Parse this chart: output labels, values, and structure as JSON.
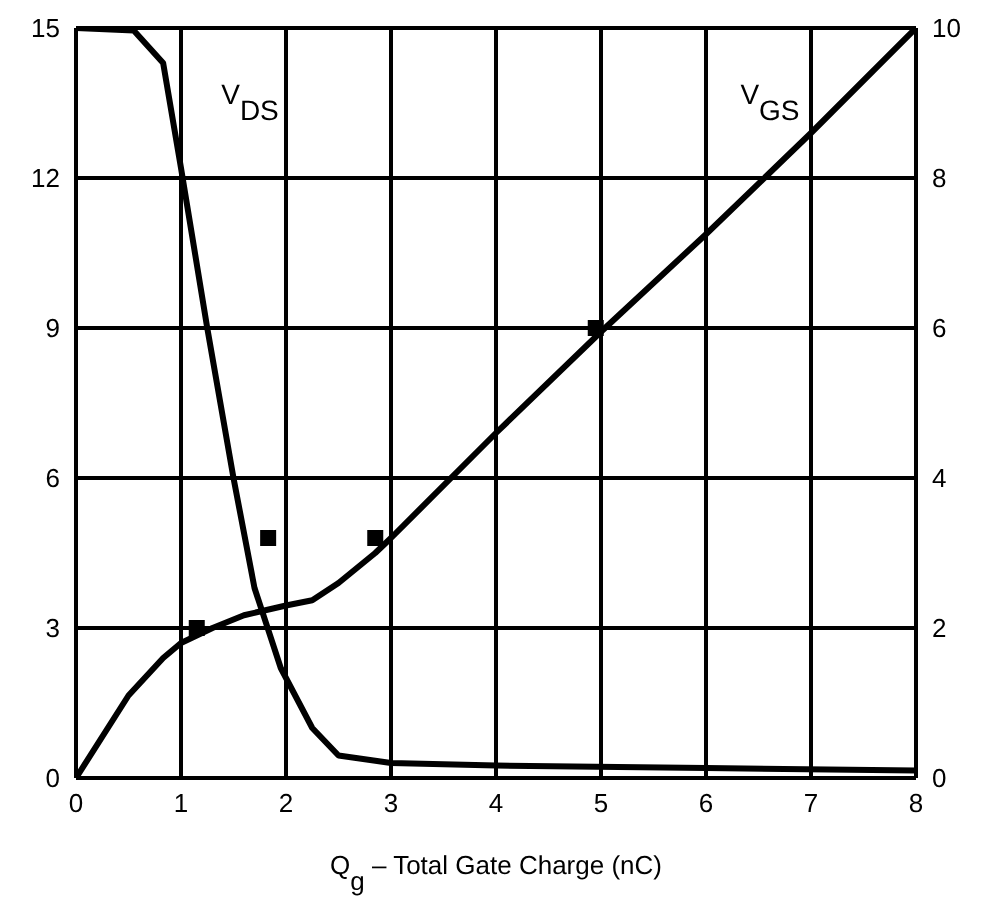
{
  "chart_data": {
    "type": "line",
    "xlabel": "Q$_{g}$ – Total Gate Charge (nC)",
    "xlim": [
      0,
      8
    ],
    "xticks": [
      0,
      1,
      2,
      3,
      4,
      5,
      6,
      7,
      8
    ],
    "ylim": [
      0,
      15
    ],
    "yticks": [
      0,
      3,
      6,
      9,
      12,
      15
    ],
    "y2lim": [
      0,
      10
    ],
    "y2ticks": [
      0,
      2,
      4,
      6,
      8,
      10
    ],
    "grid": true,
    "series": [
      {
        "axis": "y",
        "color": "#000000",
        "x": [
          0,
          0.55,
          0.83,
          1,
          1.25,
          1.5,
          1.7,
          1.95,
          2.25,
          2.5,
          3,
          4,
          6,
          8
        ],
        "values": [
          15,
          14.95,
          14.3,
          12.2,
          9,
          6,
          3.8,
          2.2,
          1.0,
          0.45,
          0.3,
          0.25,
          0.2,
          0.15
        ]
      },
      {
        "axis": "y2",
        "color": "#000000",
        "x": [
          0,
          0.5,
          0.83,
          1,
          1.3,
          1.6,
          2,
          2.25,
          2.5,
          2.85,
          3,
          4,
          5,
          6,
          7,
          8
        ],
        "values": [
          0,
          1.1,
          1.6,
          1.8,
          2.0,
          2.17,
          2.3,
          2.37,
          2.6,
          3.0,
          3.2,
          4.6,
          5.95,
          7.25,
          8.6,
          10
        ]
      },
      {
        "type": "scatter",
        "axis": "y2",
        "color": "#000000",
        "marker": "square",
        "x": [
          1.15,
          1.83,
          2.85,
          4.95
        ],
        "values": [
          2.0,
          3.2,
          3.2,
          6.0
        ]
      }
    ],
    "annotations": [
      "V$_{DS}$",
      "V$_{GS}$"
    ]
  }
}
